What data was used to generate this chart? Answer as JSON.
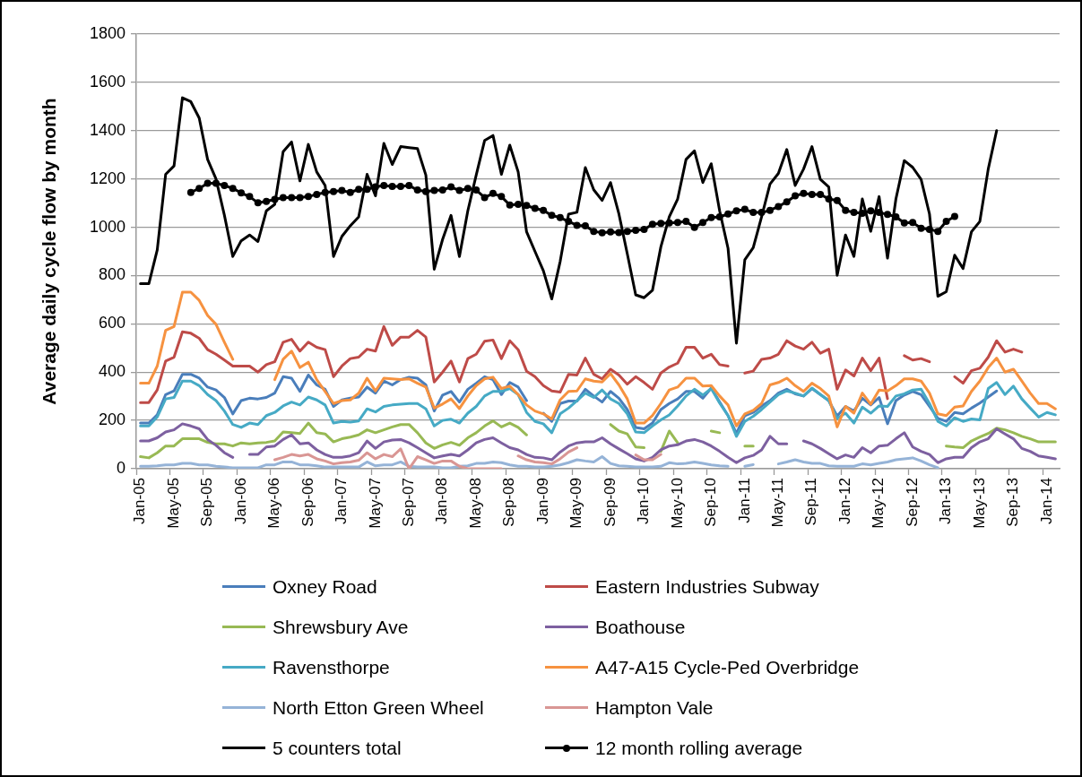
{
  "chart_data": {
    "type": "line",
    "ylabel": "Average daily cycle flow by month",
    "categories": [
      "Jan-05",
      null,
      null,
      null,
      "May-05",
      null,
      null,
      null,
      "Sep-05",
      null,
      null,
      null,
      "Jan-06",
      null,
      null,
      null,
      "May-06",
      null,
      null,
      null,
      "Sep-06",
      null,
      null,
      null,
      "Jan-07",
      null,
      null,
      null,
      "May-07",
      null,
      null,
      null,
      "Sep-07",
      null,
      null,
      null,
      "Jan-08",
      null,
      null,
      null,
      "May-08",
      null,
      null,
      null,
      "Sep-08",
      null,
      null,
      null,
      "Jan-09",
      null,
      null,
      null,
      "May-09",
      null,
      null,
      null,
      "Sep-09",
      null,
      null,
      null,
      "Jan-10",
      null,
      null,
      null,
      "May-10",
      null,
      null,
      null,
      "Sep-10",
      null,
      null,
      null,
      "Jan-11",
      null,
      null,
      null,
      "May-11",
      null,
      null,
      null,
      "Sep-11",
      null,
      null,
      null,
      "Jan-12",
      null,
      null,
      null,
      "May-12",
      null,
      null,
      null,
      "Sep-12",
      null,
      null,
      null,
      "Jan-13",
      null,
      null,
      null,
      "May-13",
      null,
      null,
      null,
      "Sep-13",
      null,
      null,
      null,
      "Jan-14",
      null
    ],
    "series": [
      {
        "name": "Oxney Road",
        "color": "#4a7ebb",
        "values": [
          189,
          189,
          223,
          307,
          322,
          391,
          391,
          375,
          338,
          326,
          295,
          227,
          282,
          292,
          289,
          295,
          313,
          381,
          375,
          320,
          388,
          347,
          329,
          258,
          285,
          292,
          297,
          338,
          313,
          363,
          347,
          369,
          379,
          375,
          347,
          239,
          305,
          320,
          276,
          329,
          354,
          381,
          369,
          307,
          357,
          338,
          282,
          null,
          230,
          196,
          270,
          280,
          280,
          329,
          301,
          276,
          320,
          292,
          245,
          171,
          165,
          189,
          245,
          270,
          289,
          320,
          320,
          292,
          334,
          276,
          220,
          146,
          220,
          233,
          260,
          282,
          313,
          329,
          310,
          301,
          332,
          307,
          282,
          218,
          258,
          239,
          292,
          264,
          295,
          186,
          282,
          305,
          320,
          307,
          258,
          208,
          196,
          233,
          227,
          251,
          272,
          297,
          322,
          null,
          null,
          null,
          null,
          null,
          null,
          null
        ]
      },
      {
        "name": "Eastern Industries Subway",
        "color": "#be4b48",
        "values": [
          274,
          274,
          326,
          446,
          462,
          567,
          561,
          540,
          493,
          474,
          450,
          425,
          425,
          425,
          400,
          431,
          443,
          524,
          536,
          487,
          524,
          503,
          493,
          381,
          425,
          456,
          462,
          495,
          487,
          589,
          511,
          545,
          545,
          573,
          545,
          359,
          400,
          446,
          359,
          456,
          474,
          528,
          533,
          456,
          530,
          493,
          404,
          381,
          344,
          322,
          317,
          391,
          388,
          458,
          391,
          372,
          412,
          388,
          350,
          381,
          357,
          329,
          396,
          421,
          437,
          503,
          503,
          458,
          474,
          431,
          425,
          null,
          396,
          404,
          453,
          458,
          474,
          530,
          508,
          495,
          524,
          478,
          495,
          329,
          409,
          384,
          458,
          406,
          458,
          290,
          null,
          468,
          450,
          456,
          443,
          null,
          null,
          381,
          354,
          406,
          416,
          462,
          530,
          483,
          495,
          483,
          null,
          null,
          null,
          null
        ]
      },
      {
        "name": "Shrewsbury Ave",
        "color": "#98b954",
        "values": [
          50,
          45,
          66,
          94,
          94,
          124,
          124,
          124,
          109,
          103,
          103,
          94,
          107,
          103,
          107,
          109,
          115,
          152,
          149,
          146,
          189,
          149,
          144,
          111,
          124,
          131,
          140,
          161,
          149,
          161,
          173,
          183,
          183,
          149,
          107,
          84,
          99,
          109,
          97,
          128,
          149,
          177,
          198,
          173,
          189,
          171,
          140,
          null,
          null,
          null,
          null,
          null,
          null,
          null,
          null,
          null,
          183,
          156,
          144,
          90,
          87,
          null,
          72,
          156,
          107,
          null,
          null,
          null,
          156,
          149,
          null,
          null,
          94,
          94,
          null,
          null,
          null,
          null,
          null,
          null,
          null,
          null,
          null,
          null,
          null,
          null,
          null,
          null,
          null,
          null,
          null,
          null,
          null,
          null,
          null,
          null,
          94,
          90,
          87,
          115,
          131,
          146,
          168,
          161,
          149,
          134,
          124,
          111,
          111,
          111
        ]
      },
      {
        "name": "Boathouse",
        "color": "#7d60a0",
        "values": [
          115,
          115,
          128,
          152,
          161,
          186,
          177,
          165,
          121,
          97,
          66,
          47,
          null,
          59,
          59,
          90,
          94,
          121,
          140,
          103,
          107,
          78,
          59,
          47,
          47,
          53,
          66,
          115,
          84,
          111,
          119,
          121,
          107,
          87,
          66,
          45,
          53,
          59,
          53,
          78,
          107,
          121,
          128,
          107,
          87,
          78,
          59,
          47,
          45,
          37,
          69,
          94,
          107,
          111,
          111,
          128,
          103,
          82,
          62,
          41,
          32,
          47,
          78,
          94,
          99,
          115,
          121,
          111,
          94,
          72,
          47,
          25,
          45,
          55,
          78,
          134,
          103,
          103,
          null,
          115,
          103,
          84,
          62,
          41,
          57,
          47,
          87,
          66,
          94,
          97,
          124,
          149,
          90,
          72,
          59,
          25,
          41,
          47,
          47,
          87,
          111,
          124,
          165,
          144,
          124,
          84,
          72,
          53,
          47,
          41
        ]
      },
      {
        "name": "Ravensthorpe",
        "color": "#46aac5",
        "values": [
          177,
          177,
          214,
          289,
          295,
          363,
          363,
          344,
          307,
          282,
          239,
          183,
          171,
          189,
          183,
          220,
          233,
          260,
          276,
          264,
          297,
          285,
          264,
          189,
          196,
          193,
          198,
          248,
          235,
          258,
          264,
          267,
          270,
          270,
          248,
          177,
          200,
          205,
          189,
          230,
          258,
          301,
          320,
          320,
          332,
          307,
          233,
          196,
          186,
          149,
          227,
          251,
          282,
          313,
          295,
          326,
          289,
          270,
          227,
          152,
          149,
          177,
          202,
          223,
          260,
          301,
          329,
          305,
          332,
          272,
          220,
          134,
          196,
          217,
          245,
          276,
          307,
          322,
          313,
          301,
          334,
          307,
          282,
          208,
          230,
          189,
          255,
          230,
          260,
          258,
          301,
          310,
          326,
          329,
          270,
          196,
          177,
          211,
          196,
          206,
          202,
          332,
          357,
          307,
          342,
          289,
          251,
          214,
          233,
          223
        ]
      },
      {
        "name": "A47-A15 Cycle-Ped Overbridge",
        "color": "#f69240",
        "values": [
          354,
          354,
          425,
          573,
          589,
          731,
          731,
          697,
          635,
          598,
          524,
          453,
          null,
          null,
          null,
          null,
          369,
          453,
          487,
          419,
          441,
          369,
          320,
          270,
          282,
          285,
          313,
          375,
          322,
          375,
          372,
          369,
          372,
          354,
          338,
          251,
          268,
          289,
          249,
          301,
          344,
          372,
          379,
          332,
          342,
          307,
          264,
          239,
          227,
          206,
          285,
          320,
          322,
          372,
          363,
          359,
          394,
          347,
          289,
          189,
          189,
          220,
          270,
          326,
          338,
          375,
          375,
          342,
          344,
          301,
          264,
          177,
          227,
          242,
          270,
          347,
          357,
          375,
          344,
          320,
          354,
          332,
          301,
          173,
          258,
          230,
          313,
          267,
          326,
          322,
          344,
          372,
          372,
          363,
          313,
          227,
          220,
          255,
          260,
          320,
          363,
          419,
          458,
          400,
          412,
          363,
          313,
          270,
          270,
          248
        ]
      },
      {
        "name": "North Etton Green Wheel",
        "color": "#95b3d7",
        "values": [
          10,
          10,
          12,
          16,
          16,
          22,
          22,
          16,
          16,
          10,
          7,
          4,
          4,
          4,
          4,
          16,
          16,
          28,
          28,
          16,
          16,
          12,
          7,
          7,
          7,
          7,
          7,
          28,
          12,
          16,
          16,
          28,
          10,
          7,
          7,
          7,
          4,
          4,
          10,
          12,
          22,
          22,
          28,
          25,
          16,
          10,
          10,
          7,
          7,
          10,
          16,
          25,
          37,
          32,
          28,
          50,
          22,
          12,
          10,
          7,
          7,
          7,
          10,
          25,
          20,
          22,
          28,
          22,
          16,
          12,
          10,
          null,
          10,
          17,
          null,
          null,
          20,
          28,
          37,
          28,
          22,
          22,
          12,
          10,
          10,
          10,
          20,
          16,
          22,
          28,
          37,
          41,
          45,
          32,
          16,
          4,
          null,
          null,
          null,
          null,
          null,
          null,
          null,
          null,
          null,
          null,
          null,
          null,
          null,
          null
        ]
      },
      {
        "name": "Hampton Vale",
        "color": "#d99694",
        "values": [
          null,
          null,
          null,
          null,
          null,
          null,
          null,
          null,
          null,
          null,
          null,
          null,
          null,
          null,
          null,
          null,
          37,
          47,
          59,
          53,
          59,
          41,
          32,
          20,
          25,
          28,
          35,
          66,
          41,
          59,
          50,
          82,
          0,
          50,
          37,
          22,
          32,
          32,
          10,
          0,
          0,
          0,
          0,
          0,
          null,
          53,
          37,
          28,
          25,
          20,
          41,
          69,
          87,
          null,
          null,
          null,
          null,
          null,
          null,
          57,
          37,
          37,
          59,
          null,
          null,
          null,
          null,
          null,
          null,
          null,
          null,
          null,
          null,
          null,
          null,
          null,
          null,
          null,
          null,
          null,
          null,
          null,
          null,
          null,
          null,
          null,
          null,
          null,
          null,
          null,
          null,
          null,
          null,
          null,
          null,
          null,
          null,
          null,
          null,
          null,
          null,
          null,
          null,
          null,
          null,
          null,
          null,
          null,
          null,
          null
        ]
      },
      {
        "name": "5 counters total",
        "color": "#000000",
        "values": [
          766,
          766,
          906,
          1219,
          1254,
          1536,
          1520,
          1452,
          1281,
          1200,
          1050,
          879,
          944,
          968,
          941,
          1068,
          1095,
          1313,
          1353,
          1192,
          1343,
          1229,
          1173,
          879,
          962,
          1006,
          1043,
          1219,
          1130,
          1347,
          1260,
          1334,
          1330,
          1326,
          1216,
          826,
          950,
          1049,
          879,
          1068,
          1216,
          1359,
          1380,
          1219,
          1340,
          1229,
          981,
          900,
          820,
          703,
          858,
          1054,
          1062,
          1247,
          1155,
          1111,
          1185,
          1055,
          890,
          720,
          708,
          739,
          919,
          1043,
          1117,
          1281,
          1316,
          1185,
          1263,
          1068,
          913,
          520,
          865,
          915,
          1043,
          1179,
          1223,
          1322,
          1173,
          1241,
          1334,
          1198,
          1167,
          801,
          968,
          879,
          1117,
          983,
          1127,
          872,
          1117,
          1276,
          1248,
          1198,
          1055,
          714,
          733,
          884,
          829,
          981,
          1024,
          1241,
          1400,
          null,
          null,
          null,
          null,
          null,
          null,
          null
        ]
      },
      {
        "name": "12 month rolling average",
        "color": "#000000",
        "marker": "circle",
        "values": [
          null,
          null,
          null,
          null,
          null,
          null,
          1144,
          1161,
          1182,
          1182,
          1173,
          1161,
          1142,
          1127,
          1101,
          1107,
          1115,
          1123,
          1123,
          1123,
          1127,
          1136,
          1144,
          1148,
          1152,
          1144,
          1157,
          1157,
          1167,
          1173,
          1169,
          1169,
          1173,
          1154,
          1148,
          1152,
          1154,
          1167,
          1152,
          1161,
          1154,
          1123,
          1140,
          1127,
          1092,
          1095,
          1090,
          1078,
          1070,
          1049,
          1040,
          1024,
          1008,
          1006,
          983,
          977,
          981,
          978,
          983,
          987,
          991,
          1012,
          1016,
          1018,
          1020,
          1024,
          999,
          1020,
          1040,
          1043,
          1055,
          1068,
          1074,
          1061,
          1061,
          1070,
          1086,
          1105,
          1130,
          1140,
          1136,
          1136,
          1117,
          1111,
          1070,
          1061,
          1058,
          1068,
          1061,
          1053,
          1043,
          1018,
          1020,
          996,
          991,
          983,
          1024,
          1045,
          null,
          null,
          null,
          null,
          null,
          null,
          null,
          null,
          null,
          null,
          null,
          null
        ]
      }
    ],
    "ylim": [
      0,
      1800
    ],
    "yticks": [
      0,
      200,
      400,
      600,
      800,
      1000,
      1200,
      1400,
      1600,
      1800
    ],
    "grid": "y",
    "legend": "bottom",
    "marker": "none"
  }
}
